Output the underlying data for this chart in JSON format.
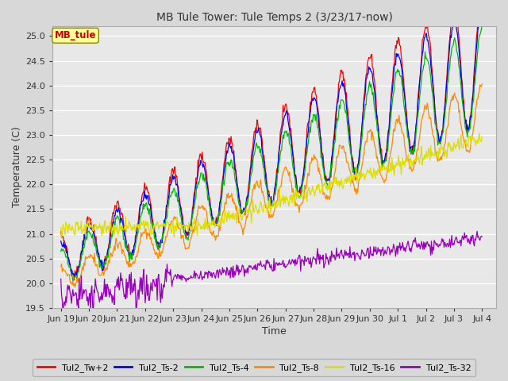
{
  "title": "MB Tule Tower: Tule Temps 2 (3/23/17-now)",
  "xlabel": "Time",
  "ylabel": "Temperature (C)",
  "legend_label": "MB_tule",
  "ylim": [
    19.5,
    25.2
  ],
  "xlim": [
    -0.3,
    15.5
  ],
  "bg_color": "#d8d8d8",
  "plot_bg_color": "#e8e8e8",
  "grid_color": "#ffffff",
  "series_colors": {
    "Tul2_Tw+2": "#ff0000",
    "Tul2_Ts-2": "#0000ff",
    "Tul2_Ts-4": "#00bb00",
    "Tul2_Ts-8": "#ff8800",
    "Tul2_Ts-16": "#dddd00",
    "Tul2_Ts-32": "#9900bb"
  },
  "xtick_labels": [
    "Jun 19",
    "Jun 20",
    "Jun 21",
    "Jun 22",
    "Jun 23",
    "Jun 24",
    "Jun 25",
    "Jun 26",
    "Jun 27",
    "Jun 28",
    "Jun 29",
    "Jun 30",
    "Jul 1",
    "Jul 2",
    "Jul 3",
    "Jul 4"
  ],
  "ytick_values": [
    19.5,
    20.0,
    20.5,
    21.0,
    21.5,
    22.0,
    22.5,
    23.0,
    23.5,
    24.0,
    24.5,
    25.0
  ],
  "num_points": 600
}
